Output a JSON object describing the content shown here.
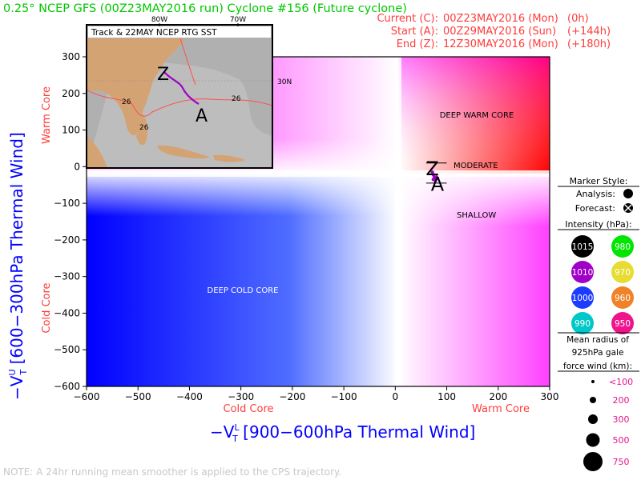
{
  "header": {
    "title": "0.25° NCEP GFS (00Z23MAY2016 run) Cyclone #156 (Future cyclone)",
    "current_label": "Current (C):",
    "current_value": "00Z23MAY2016 (Mon)",
    "current_offset": "(0h)",
    "start_label": "Start (A):",
    "start_value": "00Z29MAY2016 (Sun)",
    "start_offset": "(+144h)",
    "end_label": "End (Z):",
    "end_value": "12Z30MAY2016 (Mon)",
    "end_offset": "(+180h)"
  },
  "inset_map": {
    "title": "Track & 22MAY NCEP RTG SST",
    "lon_labels": [
      "80W",
      "70W"
    ],
    "lat_label": "30N",
    "sst_labels": [
      "26",
      "26",
      "26"
    ],
    "track_markers": [
      "Z",
      "A"
    ]
  },
  "chart_data": {
    "type": "line",
    "xlabel": "−V",
    "xlabel_sup": "L",
    "xlabel_sub": "T",
    "xlabel_rest": " [900−600hPa Thermal Wind]",
    "ylabel": "−V",
    "ylabel_sup": "U",
    "ylabel_sub": "T",
    "ylabel_rest": " [600−300hPa Thermal Wind]",
    "xlim": [
      -600,
      300
    ],
    "ylim": [
      -600,
      300
    ],
    "xticks": [
      -600,
      -500,
      -400,
      -300,
      -200,
      -100,
      0,
      100,
      200,
      300
    ],
    "yticks": [
      -600,
      -500,
      -400,
      -300,
      -200,
      -100,
      0,
      100,
      200,
      300
    ],
    "xtick_labels": [
      "−600",
      "−500",
      "−400",
      "−300",
      "−200",
      "−100",
      "0",
      "100",
      "200",
      "300"
    ],
    "ytick_labels": [
      "−600",
      "−500",
      "−400",
      "−300",
      "−200",
      "−100",
      "0",
      "100",
      "200",
      "300"
    ],
    "grid": false,
    "regions": {
      "deep_warm": "DEEP WARM CORE",
      "deep_cold": "DEEP COLD CORE",
      "moderate": "MODERATE",
      "shallow": "SHALLOW"
    },
    "axis_side_labels": {
      "warm_core_y": "Warm Core",
      "cold_core_y": "Cold Core",
      "cold_core_x": "Cold Core",
      "warm_core_x": "Warm Core"
    },
    "track": [
      {
        "x": 72,
        "y": -15
      },
      {
        "x": 74,
        "y": -22
      },
      {
        "x": 77,
        "y": -30
      },
      {
        "x": 80,
        "y": -28
      },
      {
        "x": 82,
        "y": -32
      },
      {
        "x": 78,
        "y": -38
      },
      {
        "x": 74,
        "y": -35
      },
      {
        "x": 76,
        "y": -28
      }
    ],
    "start_marker": {
      "label": "A",
      "x": 82,
      "y": -40
    },
    "end_marker": {
      "label": "Z",
      "x": 72,
      "y": -10
    },
    "track_color": "#a000c8",
    "colors": {
      "warm": "#ff0000",
      "warm_mid": "#ff00ff",
      "cold": "#0000ff",
      "label_red": "#ff3c3c",
      "axis_blue": "#0000ff",
      "title_green": "#00c800"
    }
  },
  "legend": {
    "marker_style_title": "Marker Style:",
    "analysis_label": "Analysis:",
    "forecast_label": "Forecast:",
    "intensity_title": "Intensity (hPa):",
    "intensity": [
      {
        "value": "1015",
        "color": "#000000",
        "text_color": "#ffffff"
      },
      {
        "value": "980",
        "color": "#00e600",
        "text_color": "#ffffff"
      },
      {
        "value": "1010",
        "color": "#a000c8",
        "text_color": "#ffffff"
      },
      {
        "value": "970",
        "color": "#e6dc32",
        "text_color": "#ffffff"
      },
      {
        "value": "1000",
        "color": "#1e3cff",
        "text_color": "#ffffff"
      },
      {
        "value": "960",
        "color": "#f08228",
        "text_color": "#ffffff"
      },
      {
        "value": "990",
        "color": "#00c8c8",
        "text_color": "#ffffff"
      },
      {
        "value": "950",
        "color": "#f0148c",
        "text_color": "#ffffff"
      }
    ],
    "radius_title_1": "Mean radius of",
    "radius_title_2": "925hPa gale",
    "radius_title_3": "force wind (km):",
    "radius": [
      "<100",
      "200",
      "300",
      "500",
      "750"
    ]
  },
  "footer": {
    "note": "NOTE:  A 24hr running mean smoother is applied to the CPS trajectory."
  }
}
